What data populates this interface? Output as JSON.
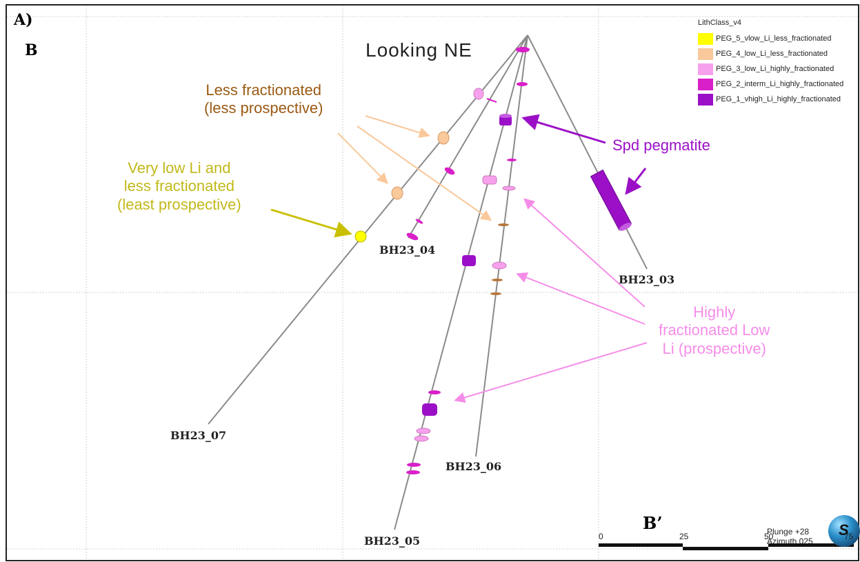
{
  "panel_labels": {
    "a": "A)",
    "b": "B",
    "b_prime": "B’"
  },
  "view_label": "Looking NE",
  "legend": {
    "title": "LithClass_v4",
    "items": [
      {
        "label": "PEG_5_vlow_Li_less_fractionated",
        "color": "#ffff00"
      },
      {
        "label": "PEG_4_low_Li_less_fractionated",
        "color": "#f9c89b"
      },
      {
        "label": "PEG_3_low_Li_highly_fractionated",
        "color": "#f7a0ec"
      },
      {
        "label": "PEG_2_interm_Li_highly_fractionated",
        "color": "#d91fc9"
      },
      {
        "label": "PEG_1_vhigh_Li_highly_fractionated",
        "color": "#9b10c7"
      }
    ]
  },
  "boreholes": [
    "BH23_07",
    "BH23_04",
    "BH23_03",
    "BH23_06",
    "BH23_05"
  ],
  "annotations": {
    "less_fractionated": {
      "line1": "Less fractionated",
      "line2": "(less prospective)",
      "color": "#9a5a14"
    },
    "very_low_li": {
      "line1": "Very low Li and",
      "line2": "less fractionated",
      "line3": "(least prospective)",
      "color": "#c2b81a"
    },
    "spd_pegmatite": {
      "text": "Spd pegmatite",
      "color": "#9b10c7"
    },
    "highly_fractionated": {
      "line1": "Highly",
      "line2": "fractionated Low",
      "line3": "Li (prospective)",
      "color": "#f58de8"
    }
  },
  "orientation": {
    "plunge": "Plunge +28",
    "azimuth": "Azimuth 025"
  },
  "globe_letter": "S",
  "scale_bar": {
    "ticks": [
      "0",
      "25",
      "50",
      "75"
    ]
  }
}
